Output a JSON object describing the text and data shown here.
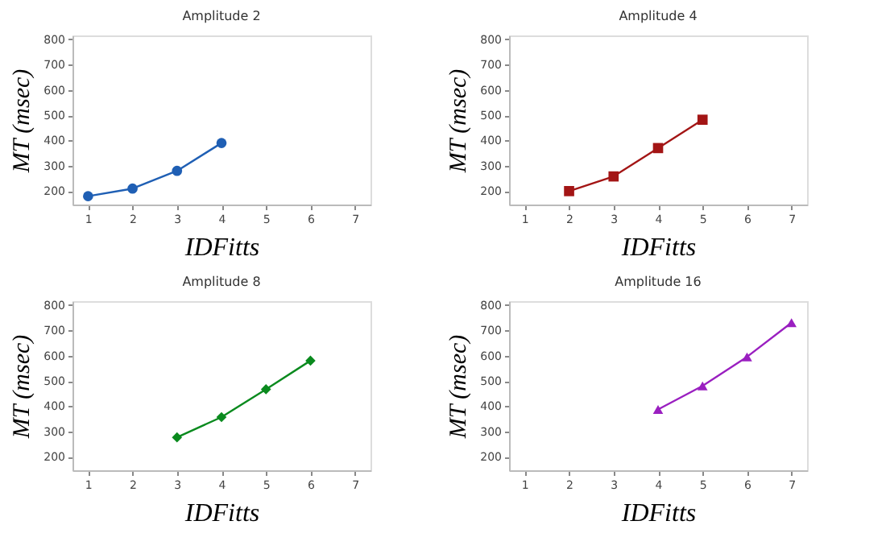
{
  "chart_data": [
    {
      "type": "line",
      "title": "Amplitude 2",
      "xlabel": "IDFitts",
      "ylabel": "MT (msec)",
      "marker": "circle",
      "grid": false,
      "legend": false,
      "series": [
        {
          "color": "#1f5fb4",
          "x": [
            1,
            2,
            3,
            4
          ],
          "values": [
            180,
            210,
            280,
            390
          ]
        }
      ],
      "xlim": [
        0.65,
        7.35
      ],
      "xticks": [
        1,
        2,
        3,
        4,
        5,
        6,
        7
      ],
      "ylim": [
        147,
        815
      ],
      "yticks": [
        200,
        300,
        400,
        500,
        600,
        700,
        800
      ]
    },
    {
      "type": "line",
      "title": "Amplitude 4",
      "xlabel": "IDFitts",
      "ylabel": "MT (msec)",
      "marker": "square",
      "grid": false,
      "legend": false,
      "series": [
        {
          "color": "#a31515",
          "x": [
            2,
            3,
            4,
            5
          ],
          "values": [
            200,
            258,
            370,
            482
          ]
        }
      ],
      "xlim": [
        0.65,
        7.35
      ],
      "xticks": [
        1,
        2,
        3,
        4,
        5,
        6,
        7
      ],
      "ylim": [
        147,
        815
      ],
      "yticks": [
        200,
        300,
        400,
        500,
        600,
        700,
        800
      ]
    },
    {
      "type": "line",
      "title": "Amplitude 8",
      "xlabel": "IDFitts",
      "ylabel": "MT (msec)",
      "marker": "diamond",
      "grid": false,
      "legend": false,
      "series": [
        {
          "color": "#0a8a1e",
          "x": [
            3,
            4,
            5,
            6
          ],
          "values": [
            277,
            357,
            467,
            580
          ]
        }
      ],
      "xlim": [
        0.65,
        7.35
      ],
      "xticks": [
        1,
        2,
        3,
        4,
        5,
        6,
        7
      ],
      "ylim": [
        147,
        815
      ],
      "yticks": [
        200,
        300,
        400,
        500,
        600,
        700,
        800
      ]
    },
    {
      "type": "line",
      "title": "Amplitude 16",
      "xlabel": "IDFitts",
      "ylabel": "MT (msec)",
      "marker": "triangle",
      "grid": false,
      "legend": false,
      "series": [
        {
          "color": "#9a1fc0",
          "x": [
            4,
            5,
            6,
            7
          ],
          "values": [
            387,
            480,
            595,
            730
          ]
        }
      ],
      "xlim": [
        0.65,
        7.35
      ],
      "xticks": [
        1,
        2,
        3,
        4,
        5,
        6,
        7
      ],
      "ylim": [
        147,
        815
      ],
      "yticks": [
        200,
        300,
        400,
        500,
        600,
        700,
        800
      ]
    }
  ]
}
